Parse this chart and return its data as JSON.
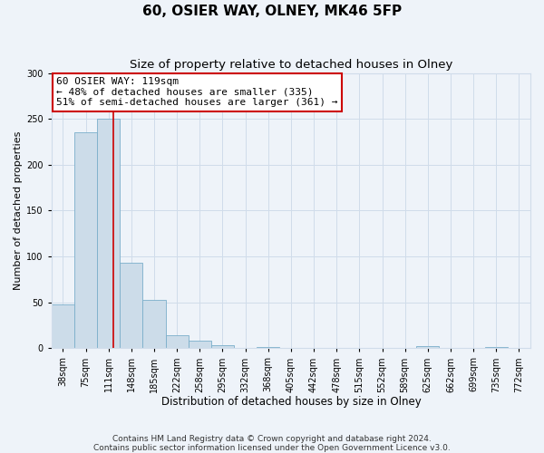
{
  "title": "60, OSIER WAY, OLNEY, MK46 5FP",
  "subtitle": "Size of property relative to detached houses in Olney",
  "xlabel": "Distribution of detached houses by size in Olney",
  "ylabel": "Number of detached properties",
  "bin_labels": [
    "38sqm",
    "75sqm",
    "111sqm",
    "148sqm",
    "185sqm",
    "222sqm",
    "258sqm",
    "295sqm",
    "332sqm",
    "368sqm",
    "405sqm",
    "442sqm",
    "478sqm",
    "515sqm",
    "552sqm",
    "589sqm",
    "625sqm",
    "662sqm",
    "699sqm",
    "735sqm",
    "772sqm"
  ],
  "bar_heights": [
    48,
    235,
    250,
    93,
    53,
    14,
    8,
    3,
    0,
    1,
    0,
    0,
    0,
    0,
    0,
    0,
    2,
    0,
    0,
    1,
    0
  ],
  "bar_color": "#ccdce9",
  "bar_edgecolor": "#7aaeca",
  "vline_x_bin": 2.22,
  "vline_color": "#cc0000",
  "annotation_line1": "60 OSIER WAY: 119sqm",
  "annotation_line2": "← 48% of detached houses are smaller (335)",
  "annotation_line3": "51% of semi-detached houses are larger (361) →",
  "annotation_box_color": "#ffffff",
  "annotation_box_edgecolor": "#cc0000",
  "ylim": [
    0,
    300
  ],
  "yticks": [
    0,
    50,
    100,
    150,
    200,
    250,
    300
  ],
  "footer_line1": "Contains HM Land Registry data © Crown copyright and database right 2024.",
  "footer_line2": "Contains public sector information licensed under the Open Government Licence v3.0.",
  "footer_fontsize": 6.5,
  "title_fontsize": 11,
  "subtitle_fontsize": 9.5,
  "xlabel_fontsize": 8.5,
  "ylabel_fontsize": 8,
  "annotation_fontsize": 8,
  "tick_fontsize": 7,
  "grid_color": "#d0dcea",
  "bg_color": "#eef3f9"
}
